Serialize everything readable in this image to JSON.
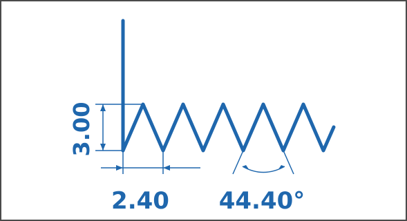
{
  "diagram": {
    "vertical_dimension": "3.00",
    "horizontal_dimension": "2.40",
    "angle_dimension": "44.40°",
    "colors": {
      "stroke": "#1f67ad",
      "border": "#4a4a4a",
      "background": "#ffffff"
    }
  }
}
